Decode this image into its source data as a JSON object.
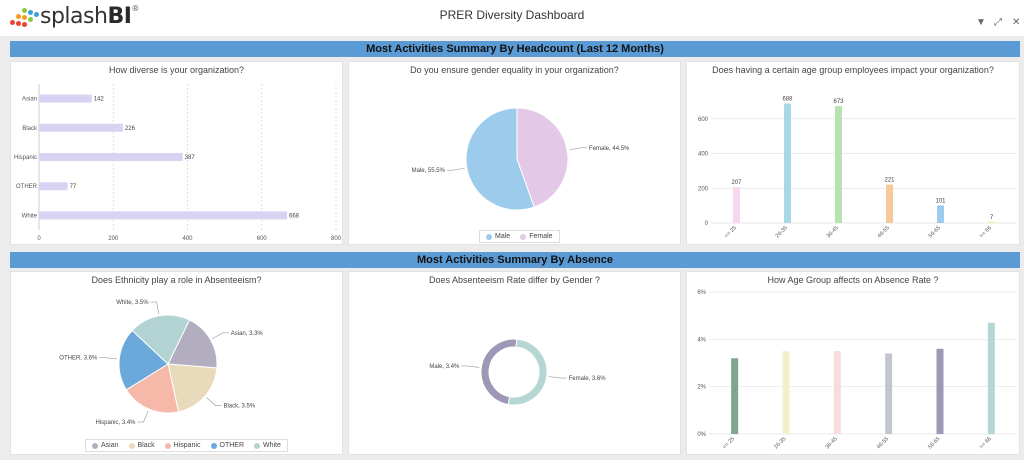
{
  "header": {
    "title": "PRER Diversity Dashboard",
    "logo_text_light": "splash",
    "logo_text_bold": "BI",
    "logo_reg": "®"
  },
  "sections": {
    "headcount": "Most Activities Summary By Headcount (Last 12 Months)",
    "absence": "Most Activities Summary By Absence"
  },
  "chart_data": [
    {
      "id": "ethnicity_headcount",
      "type": "bar",
      "orientation": "horizontal",
      "title": "How diverse is your organization?",
      "categories": [
        "Asian",
        "Black",
        "Hispanic",
        "OTHER",
        "White"
      ],
      "values": [
        142,
        226,
        387,
        77,
        668
      ],
      "xlim": [
        0,
        800
      ],
      "xticks": [
        "0",
        "200",
        "400",
        "600",
        "800"
      ],
      "color": "#d9d2f3",
      "grid": true
    },
    {
      "id": "gender_headcount",
      "type": "pie",
      "title": "Do you ensure gender equality in your organization?",
      "labels": [
        "Male",
        "Female"
      ],
      "values": [
        55.5,
        44.5
      ],
      "data_labels": [
        "Male, 55.5%",
        "Female, 44.5%"
      ],
      "colors": [
        "#9ccbec",
        "#e4c8e8"
      ],
      "legend": "bottom"
    },
    {
      "id": "age_headcount",
      "type": "bar",
      "title": "Does having a certain age group employees impact your organization?",
      "categories": [
        "<= 25",
        "26-35",
        "36-45",
        "46-55",
        "56-65",
        ">= 66"
      ],
      "values": [
        207,
        688,
        673,
        221,
        101,
        7
      ],
      "ylim": [
        0,
        800
      ],
      "yticks": [
        "0",
        "200",
        "400",
        "600"
      ],
      "colors": [
        "#f7d6ee",
        "#a8d8e6",
        "#b6e3b0",
        "#f7c99a",
        "#9ccbec",
        "#f3e9a0"
      ],
      "grid": true
    },
    {
      "id": "ethnicity_absence",
      "type": "pie",
      "title": "Does Ethnicity play a role in Absenteeism?",
      "labels": [
        "Asian",
        "Black",
        "Hispanic",
        "OTHER",
        "White"
      ],
      "values": [
        3.3,
        3.5,
        3.4,
        3.6,
        3.5
      ],
      "data_labels": [
        "Asian, 3.3%",
        "Black, 3.5%",
        "Hispanic, 3.4%",
        "OTHER, 3.6%",
        "White, 3.5%"
      ],
      "colors": [
        "#b3aebf",
        "#e8dabb",
        "#f5b8a9",
        "#6aa9d9",
        "#b2d3d1"
      ],
      "legend": "bottom"
    },
    {
      "id": "gender_absence",
      "type": "donut",
      "title": "Does Absenteeism Rate differ by Gender ?",
      "labels": [
        "Male",
        "Female"
      ],
      "values": [
        3.4,
        3.6
      ],
      "data_labels": [
        "Male, 3.4%",
        "Female, 3.6%"
      ],
      "colors": [
        "#9e97b5",
        "#b4d6d4"
      ]
    },
    {
      "id": "age_absence",
      "type": "bar",
      "title": "How Age Group affects on Absence Rate ?",
      "categories": [
        "<= 25",
        "26-35",
        "36-45",
        "46-55",
        "56-65",
        ">= 66"
      ],
      "values": [
        3.2,
        3.5,
        3.5,
        3.4,
        3.6,
        4.7
      ],
      "ylim": [
        0,
        6
      ],
      "yticks": [
        "0%",
        "2%",
        "4%",
        "6%"
      ],
      "colors": [
        "#7fa58c",
        "#f6edca",
        "#f8dcdc",
        "#c3c6d0",
        "#9e97b5",
        "#b4d6d4"
      ],
      "grid": true
    }
  ]
}
